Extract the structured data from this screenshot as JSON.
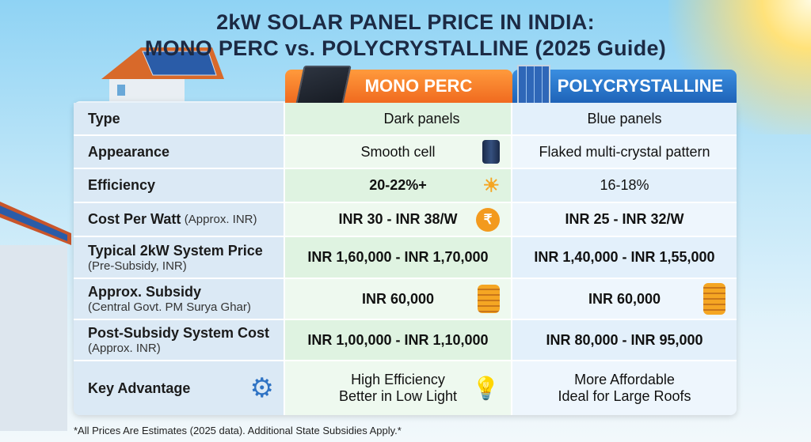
{
  "title": {
    "line1": "2kW SOLAR PANEL PRICE IN INDIA:",
    "line2": "MONO PERC vs. POLYCRYSTALLINE (2025 Guide)"
  },
  "columns": {
    "mono": "MONO PERC",
    "poly": "POLYCRYSTALLINE"
  },
  "colors": {
    "mono_header": "#f06a1f",
    "poly_header": "#1e63b8",
    "title": "#1c2a44"
  },
  "rows": [
    {
      "label": "Type",
      "sub": "",
      "mono": "Dark panels",
      "poly": "Blue panels"
    },
    {
      "label": "Appearance",
      "sub": "",
      "mono": "Smooth cell",
      "poly": "Flaked multi-crystal pattern",
      "mono_icon": "mono-cell-icon"
    },
    {
      "label": "Efficiency",
      "sub": "",
      "mono": "20-22%+",
      "poly": "16-18%",
      "mono_icon": "sun-panel-growth-icon"
    },
    {
      "label": "Cost Per Watt",
      "inline_sub": "(Approx. INR)",
      "mono": "INR 30 - INR 38/W",
      "poly": "INR 25 - INR 32/W",
      "mono_icon": "rupee-coin-icon"
    },
    {
      "label": "Typical 2kW System Price",
      "sub": "(Pre-Subsidy, INR)",
      "mono": "INR 1,60,000 - INR 1,70,000",
      "poly": "INR 1,40,000 - INR 1,55,000"
    },
    {
      "label": "Approx. Subsidy",
      "sub": "(Central Govt. PM Surya Ghar)",
      "mono": "INR 60,000",
      "poly": "INR 60,000",
      "mono_icon": "coin-stack-icon",
      "poly_icon": "coin-stack-icon"
    },
    {
      "label": "Post-Subsidy System Cost",
      "sub": "(Approx. INR)",
      "mono": "INR 1,00,000 - INR 1,10,000",
      "poly": "INR 80,000 - INR 95,000"
    },
    {
      "label": "Key Advantage",
      "sub": "",
      "mono1": "High Efficiency",
      "mono2": "Better in Low Light",
      "poly1": "More Affordable",
      "poly2": "Ideal for Large Roofs",
      "label_icon": "gears-icon",
      "mono_icon": "light-bulb-icon"
    }
  ],
  "footnote": "*All Prices Are Estimates (2025 data). Additional State Subsidies Apply.*"
}
